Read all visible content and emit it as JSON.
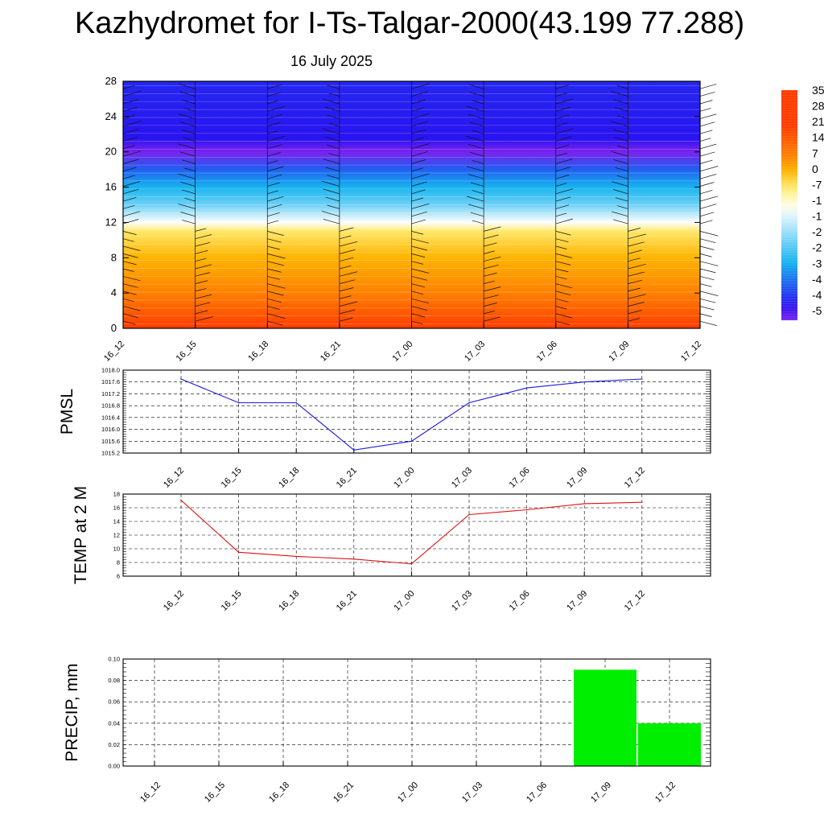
{
  "page": {
    "title": "Kazhydromet for I-Ts-Talgar-2000(43.199 77.288)",
    "date": "16 July 2025"
  },
  "chart_data": [
    {
      "type": "heatmap",
      "name": "cross-section",
      "x_ticks": [
        "16_12",
        "16_15",
        "16_18",
        "16_21",
        "17_00",
        "17_03",
        "17_06",
        "17_09",
        "17_12"
      ],
      "y_ticks": [
        0,
        4,
        8,
        12,
        16,
        20,
        24,
        28
      ],
      "ylim": [
        0,
        28
      ],
      "colorbar_labels": [
        "35",
        "28",
        "21",
        "14",
        "7",
        "0",
        "-7",
        "-1",
        "-1",
        "-2",
        "-2",
        "-3",
        "-4",
        "-4",
        "-5"
      ],
      "colorbar_range": [
        -56,
        35
      ],
      "temperature_profile": [
        {
          "level": 0,
          "value": 21
        },
        {
          "level": 4,
          "value": 9
        },
        {
          "level": 8,
          "value": 3
        },
        {
          "level": 11,
          "value": -3
        },
        {
          "level": 12,
          "value": -12
        },
        {
          "level": 14,
          "value": -25
        },
        {
          "level": 16,
          "value": -33
        },
        {
          "level": 18,
          "value": -42
        },
        {
          "level": 20,
          "value": -56
        },
        {
          "level": 21.5,
          "value": -50
        },
        {
          "level": 28,
          "value": -48
        }
      ],
      "colors": [
        "#7a22ee",
        "#2814f0",
        "#16b4f0",
        "#ffffff",
        "#fff07a",
        "#ffb400",
        "#ff8000",
        "#ff3c00"
      ]
    },
    {
      "type": "line",
      "ylabel": "PMSL",
      "categories": [
        "16_12",
        "16_15",
        "16_18",
        "16_21",
        "17_00",
        "17_03",
        "17_06",
        "17_09",
        "17_12"
      ],
      "ylim": [
        1015.2,
        1018.0
      ],
      "y_ticks": [
        "1018.0",
        "1017.6",
        "1017.2",
        "1016.8",
        "1016.4",
        "1016.0",
        "1015.6",
        "1015.2"
      ],
      "values": [
        1017.7,
        1016.9,
        1016.9,
        1015.3,
        1015.6,
        1016.9,
        1017.4,
        1017.6,
        1017.7
      ],
      "color": "#1a1adc"
    },
    {
      "type": "line",
      "ylabel": "TEMP at 2 M",
      "categories": [
        "16_12",
        "16_15",
        "16_18",
        "16_21",
        "17_00",
        "17_03",
        "17_06",
        "17_09",
        "17_12"
      ],
      "ylim": [
        6,
        18
      ],
      "y_ticks": [
        "18",
        "16",
        "14",
        "12",
        "10",
        "8",
        "6"
      ],
      "values": [
        17.1,
        9.5,
        8.9,
        8.5,
        7.8,
        15.0,
        15.7,
        16.6,
        16.8
      ],
      "color": "#e01010"
    },
    {
      "type": "bar",
      "ylabel": "PRECIP, mm",
      "categories": [
        "16_12",
        "16_15",
        "16_18",
        "16_21",
        "17_00",
        "17_03",
        "17_06",
        "17_09",
        "17_12"
      ],
      "ylim": [
        0,
        0.1
      ],
      "y_ticks": [
        "0.10",
        "0.08",
        "0.06",
        "0.04",
        "0.02",
        "0.00"
      ],
      "values": [
        0,
        0,
        0,
        0,
        0,
        0,
        0,
        0.09,
        0.04
      ],
      "color": "#00ee00"
    }
  ]
}
